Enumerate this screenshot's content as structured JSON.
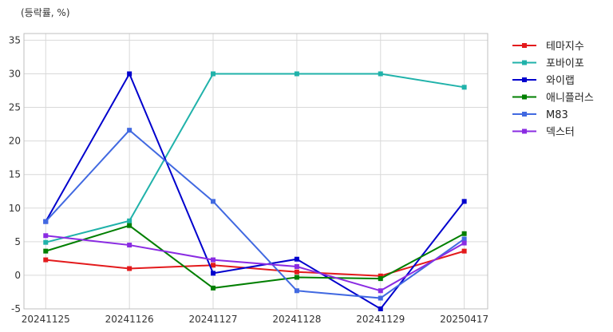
{
  "chart_data": {
    "type": "line",
    "unit_label": "(등락률, %)",
    "title": "",
    "xlabel": "",
    "ylabel": "",
    "x": [
      "20241125",
      "20241126",
      "20241127",
      "20241128",
      "20241129",
      "20250417"
    ],
    "ylim": [
      -5,
      36
    ],
    "yticks": [
      -5,
      0,
      5,
      10,
      15,
      20,
      25,
      30,
      35
    ],
    "grid": true,
    "legend_position": "outside-top-right",
    "series": [
      {
        "name": "테마지수",
        "color": "#e31a1c",
        "values": [
          2.3,
          1.0,
          1.5,
          0.5,
          -0.1,
          3.6
        ]
      },
      {
        "name": "포바이포",
        "color": "#20b2aa",
        "values": [
          4.9,
          8.1,
          30.0,
          30.0,
          30.0,
          28.0
        ]
      },
      {
        "name": "와이랩",
        "color": "#0000cd",
        "values": [
          8.0,
          30.0,
          0.3,
          2.4,
          -5.0,
          11.0
        ]
      },
      {
        "name": "애니플러스",
        "color": "#007f00",
        "values": [
          3.6,
          7.4,
          -1.9,
          -0.3,
          -0.5,
          6.2
        ]
      },
      {
        "name": "M83",
        "color": "#4169e1",
        "values": [
          8.0,
          21.6,
          11.0,
          -2.3,
          -3.4,
          5.4
        ]
      },
      {
        "name": "덱스터",
        "color": "#8a2be2",
        "values": [
          5.9,
          4.5,
          2.3,
          1.3,
          -2.3,
          4.8
        ]
      }
    ]
  }
}
